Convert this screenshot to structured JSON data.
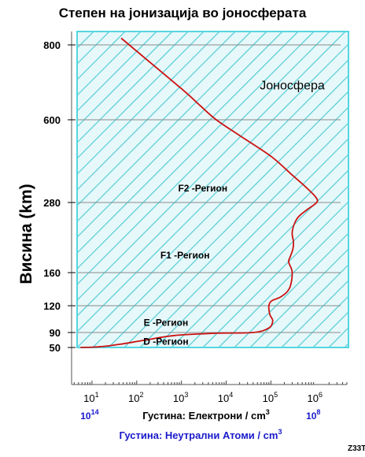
{
  "chart_data": {
    "type": "line",
    "title": "Степен на јонизација во јоносферата",
    "ylabel": "Висина (km)",
    "xlabel": "Густина: Електрони / cm",
    "xlabel_sup": "3",
    "xlabel2": "Густина: Неутрални Атоми / cm",
    "xlabel2_sup": "3",
    "x_scale": "log",
    "xlim": [
      3.5,
      5000000
    ],
    "y_ticks": [
      50,
      90,
      120,
      160,
      280,
      600,
      800
    ],
    "x_ticks": [
      {
        "value": 10,
        "base": "10",
        "exp": "1"
      },
      {
        "value": 100,
        "base": "10",
        "exp": "2"
      },
      {
        "value": 1000,
        "base": "10",
        "exp": "3"
      },
      {
        "value": 10000,
        "base": "10",
        "exp": "4"
      },
      {
        "value": 100000,
        "base": "10",
        "exp": "5"
      },
      {
        "value": 1000000,
        "base": "10",
        "exp": "6"
      }
    ],
    "neutral_atom_ticks": [
      {
        "at_electron_value": 10,
        "base": "10",
        "exp": "14"
      },
      {
        "at_electron_value": 1000000,
        "base": "10",
        "exp": "8"
      }
    ],
    "grid": "horizontal",
    "fill": "hatched",
    "fill_color": "#5ccfd6",
    "line_color": "#cc1111",
    "series": [
      {
        "x": [
          5.5,
          11,
          22,
          50,
          160,
          700,
          6000,
          40000,
          90000,
          110000,
          95000,
          90000,
          105000,
          170000,
          260000,
          300000,
          250000,
          270000,
          310000,
          320000,
          300000,
          380000,
          600000,
          1050000,
          1000000,
          600000,
          300000,
          100000,
          20000,
          6000,
          2500,
          1000,
          45
        ],
        "y": [
          50,
          51,
          54,
          60,
          70,
          82,
          88,
          90,
          95,
          103,
          110,
          120,
          126,
          131,
          141,
          160,
          178,
          187,
          200,
          212,
          230,
          252,
          266,
          280,
          301,
          340,
          386,
          459,
          539,
          600,
          640,
          683,
          818
        ]
      }
    ],
    "annotations": [
      {
        "text": "Јоносфера",
        "x": 300000,
        "y": 690
      },
      {
        "text": "F2 -Регион",
        "x": 3000,
        "y": 335
      },
      {
        "text": "F1 -Регион",
        "x": 1200,
        "y": 190
      },
      {
        "text": "E -Регион",
        "x": 450,
        "y": 101
      },
      {
        "text": "D -Регион",
        "x": 450,
        "y": 66
      }
    ],
    "figure_code": "Z33T"
  }
}
